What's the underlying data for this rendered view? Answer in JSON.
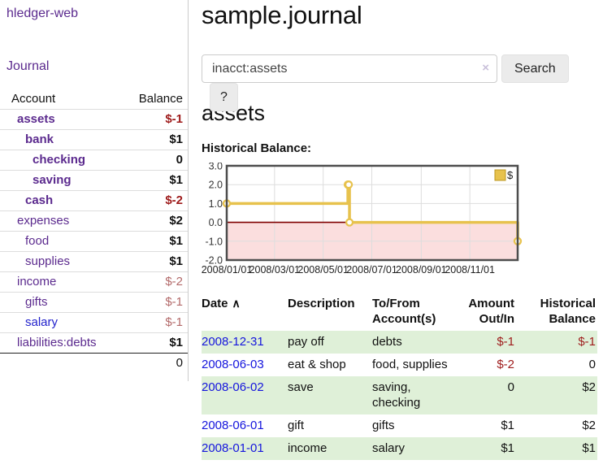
{
  "brand": "hledger-web",
  "nav": {
    "journal": "Journal"
  },
  "sidebar": {
    "account_col": "Account",
    "balance_col": "Balance",
    "accounts": [
      {
        "name": "assets",
        "balance": "$-1"
      },
      {
        "name": "bank",
        "balance": "$1"
      },
      {
        "name": "checking",
        "balance": "0"
      },
      {
        "name": "saving",
        "balance": "$1"
      },
      {
        "name": "cash",
        "balance": "$-2"
      },
      {
        "name": "expenses",
        "balance": "$2"
      },
      {
        "name": "food",
        "balance": "$1"
      },
      {
        "name": "supplies",
        "balance": "$1"
      },
      {
        "name": "income",
        "balance": "$-2"
      },
      {
        "name": "gifts",
        "balance": "$-1"
      },
      {
        "name": "salary",
        "balance": "$-1"
      },
      {
        "name": "liabilities:debts",
        "balance": "$1"
      }
    ],
    "total": "0"
  },
  "header": {
    "title": "sample.journal"
  },
  "search": {
    "value": "inacct:assets",
    "clear_icon": "×",
    "search_button": "Search",
    "help_button": "?"
  },
  "account_page": {
    "heading": "assets",
    "chart_title": "Historical Balance:"
  },
  "chart_data": {
    "type": "line",
    "step": true,
    "legend": "$",
    "line_color": "#e7c24d",
    "legend_border_color": "#bb9722",
    "grid_color": "#dddddd",
    "border_color": "#4d4d4d",
    "negative_region_color": "#fbdede",
    "zero_line_color": "#7f0000",
    "ylim": [
      -2,
      3
    ],
    "y_ticks": [
      "3.0",
      "2.0",
      "1.0",
      "0.0",
      "-1.0",
      "-2.0"
    ],
    "x_range": [
      "2008-01-01",
      "2008-12-31"
    ],
    "x_ticks": [
      {
        "date": "2008-01-01",
        "label": "2008/01/01"
      },
      {
        "date": "2008-03-01",
        "label": "2008/03/01"
      },
      {
        "date": "2008-05-01",
        "label": "2008/05/01"
      },
      {
        "date": "2008-07-01",
        "label": "2008/07/01"
      },
      {
        "date": "2008-09-01",
        "label": "2008/09/01"
      },
      {
        "date": "2008-11-01",
        "label": "2008/11/01"
      }
    ],
    "series": [
      {
        "name": "$",
        "points": [
          [
            "2008-01-01",
            1
          ],
          [
            "2008-06-01",
            2
          ],
          [
            "2008-06-02",
            2
          ],
          [
            "2008-06-03",
            0
          ],
          [
            "2008-12-31",
            -1
          ]
        ]
      }
    ]
  },
  "register": {
    "headers": {
      "date": "Date",
      "sort_icon": "∧",
      "description": "Description",
      "accounts": "To/From Account(s)",
      "amount": "Amount Out/In",
      "balance": "Historical Balance"
    },
    "rows": [
      {
        "date": "2008-12-31",
        "description": "pay off",
        "accounts": "debts",
        "amount": "$-1",
        "balance": "$-1"
      },
      {
        "date": "2008-06-03",
        "description": "eat & shop",
        "accounts": "food, supplies",
        "amount": "$-2",
        "balance": "0"
      },
      {
        "date": "2008-06-02",
        "description": "save",
        "accounts": "saving, checking",
        "amount": "0",
        "balance": "$2"
      },
      {
        "date": "2008-06-01",
        "description": "gift",
        "accounts": "gifts",
        "amount": "$1",
        "balance": "$2"
      },
      {
        "date": "2008-01-01",
        "description": "income",
        "accounts": "salary",
        "amount": "$1",
        "balance": "$1"
      }
    ]
  }
}
